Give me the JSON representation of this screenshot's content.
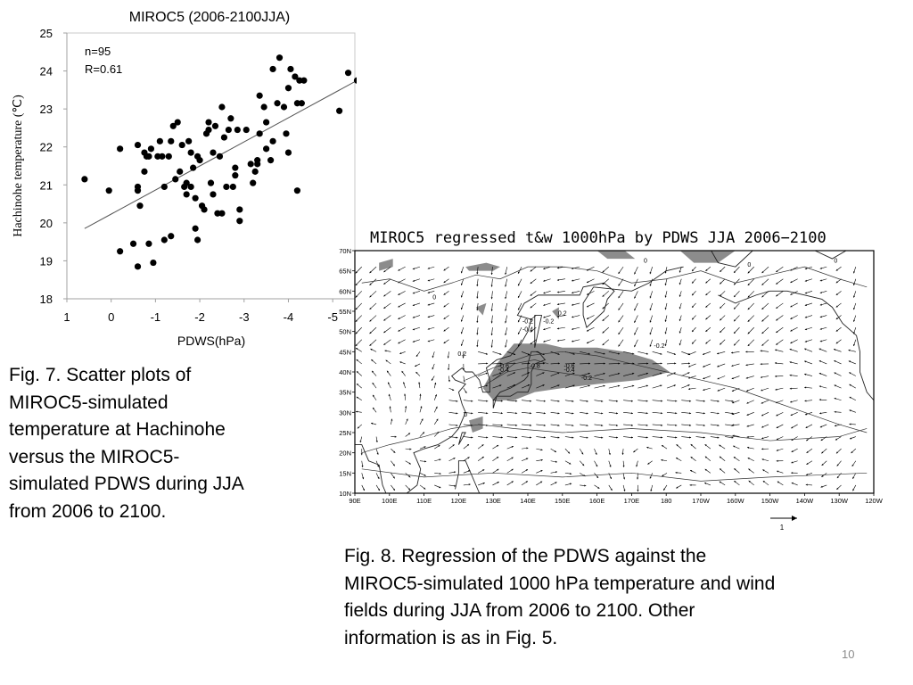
{
  "slide": {
    "page_number": "10",
    "fig7_caption": "Fig. 7. Scatter plots of\nMIROC5-simulated\ntemperature at Hachinohe\nversus the MIROC5-\nsimulated PDWS during JJA\nfrom 2006 to 2100.",
    "fig8_caption": "Fig. 8. Regression of the PDWS against the\nMIROC5-simulated 1000 hPa temperature and wind\nfields during JJA from 2006 to 2100. Other\ninformation is as in Fig. 5."
  },
  "chart_data": [
    {
      "type": "scatter",
      "title": "MIROC5 (2006-2100JJA)",
      "xlabel": "PDWS(hPa)",
      "ylabel": "Hachinohe temperature (℃)",
      "annotations": [
        "n=95",
        "R=0.61"
      ],
      "xlim": [
        1,
        -5.5
      ],
      "ylim": [
        18,
        25
      ],
      "x_ticks": [
        "1",
        "0",
        "-1",
        "-2",
        "-3",
        "-4",
        "-5"
      ],
      "y_ticks": [
        "18",
        "19",
        "20",
        "21",
        "22",
        "23",
        "24",
        "25"
      ],
      "marker_color": "#000000",
      "grid": false,
      "points": [
        [
          0.6,
          21.15
        ],
        [
          0.05,
          20.85
        ],
        [
          -0.2,
          21.95
        ],
        [
          -0.2,
          19.25
        ],
        [
          -0.5,
          19.45
        ],
        [
          -0.6,
          22.05
        ],
        [
          -0.6,
          20.95
        ],
        [
          -0.6,
          20.85
        ],
        [
          -0.6,
          18.85
        ],
        [
          -0.65,
          20.45
        ],
        [
          -0.75,
          21.85
        ],
        [
          -0.75,
          21.35
        ],
        [
          -0.8,
          21.75
        ],
        [
          -0.85,
          21.75
        ],
        [
          -0.85,
          19.45
        ],
        [
          -0.9,
          21.95
        ],
        [
          -0.95,
          18.95
        ],
        [
          -1.05,
          21.75
        ],
        [
          -1.15,
          21.75
        ],
        [
          -1.1,
          22.15
        ],
        [
          -1.2,
          19.55
        ],
        [
          -1.2,
          20.95
        ],
        [
          -1.3,
          21.75
        ],
        [
          -1.35,
          22.15
        ],
        [
          -1.35,
          19.65
        ],
        [
          -1.4,
          22.55
        ],
        [
          -1.45,
          21.15
        ],
        [
          -1.5,
          22.65
        ],
        [
          -1.55,
          21.35
        ],
        [
          -1.6,
          22.05
        ],
        [
          -1.65,
          20.95
        ],
        [
          -1.7,
          21.05
        ],
        [
          -1.7,
          20.75
        ],
        [
          -1.75,
          22.15
        ],
        [
          -1.8,
          21.85
        ],
        [
          -1.8,
          20.95
        ],
        [
          -1.85,
          21.45
        ],
        [
          -1.9,
          20.65
        ],
        [
          -1.9,
          19.85
        ],
        [
          -1.95,
          21.75
        ],
        [
          -1.95,
          19.55
        ],
        [
          -2.0,
          21.65
        ],
        [
          -2.05,
          20.45
        ],
        [
          -2.1,
          20.35
        ],
        [
          -2.15,
          22.35
        ],
        [
          -2.2,
          22.65
        ],
        [
          -2.2,
          22.45
        ],
        [
          -2.25,
          21.05
        ],
        [
          -2.3,
          21.85
        ],
        [
          -2.3,
          20.75
        ],
        [
          -2.35,
          22.55
        ],
        [
          -2.4,
          20.25
        ],
        [
          -2.45,
          21.75
        ],
        [
          -2.5,
          20.25
        ],
        [
          -2.5,
          23.05
        ],
        [
          -2.55,
          22.25
        ],
        [
          -2.6,
          20.95
        ],
        [
          -2.65,
          22.45
        ],
        [
          -2.7,
          22.75
        ],
        [
          -2.75,
          20.95
        ],
        [
          -2.8,
          21.45
        ],
        [
          -2.8,
          21.25
        ],
        [
          -2.85,
          22.45
        ],
        [
          -2.9,
          20.35
        ],
        [
          -2.9,
          20.05
        ],
        [
          -3.05,
          22.45
        ],
        [
          -3.15,
          21.55
        ],
        [
          -3.2,
          21.05
        ],
        [
          -3.25,
          21.35
        ],
        [
          -3.3,
          21.65
        ],
        [
          -3.3,
          21.55
        ],
        [
          -3.35,
          23.35
        ],
        [
          -3.35,
          22.35
        ],
        [
          -3.45,
          23.05
        ],
        [
          -3.5,
          22.65
        ],
        [
          -3.5,
          21.95
        ],
        [
          -3.6,
          21.65
        ],
        [
          -3.65,
          22.15
        ],
        [
          -3.65,
          24.05
        ],
        [
          -3.75,
          23.15
        ],
        [
          -3.8,
          24.35
        ],
        [
          -3.9,
          23.05
        ],
        [
          -3.95,
          22.35
        ],
        [
          -4.0,
          23.55
        ],
        [
          -4.05,
          24.05
        ],
        [
          -4.15,
          23.85
        ],
        [
          -4.2,
          20.85
        ],
        [
          -4.2,
          23.15
        ],
        [
          -4.25,
          23.75
        ],
        [
          -4.3,
          23.15
        ],
        [
          -4.35,
          23.75
        ],
        [
          -5.15,
          22.95
        ],
        [
          -5.35,
          23.95
        ],
        [
          -5.55,
          23.75
        ],
        [
          -4.0,
          21.85
        ]
      ],
      "regression_line": {
        "from": [
          0.6,
          19.85
        ],
        "to": [
          -5.55,
          23.75
        ]
      }
    },
    {
      "type": "map",
      "title": "MIROC5 regressed t&w 1000hPa by PDWS JJA 2006−2100",
      "lat_labels": [
        "70N",
        "65N",
        "60N",
        "55N",
        "50N",
        "45N",
        "40N",
        "35N",
        "30N",
        "25N",
        "20N",
        "15N",
        "10N"
      ],
      "lon_labels": [
        "90E",
        "100E",
        "110E",
        "120E",
        "130E",
        "140E",
        "150E",
        "160E",
        "170E",
        "180",
        "170W",
        "160W",
        "150W",
        "140W",
        "130W",
        "120W"
      ],
      "lat_range": [
        10,
        70
      ],
      "lon_range": [
        90,
        240
      ],
      "shading_color": "#8c8c8c",
      "contour_labels": [
        "0",
        "0",
        "0",
        "0",
        "-0.2",
        "-0.2",
        "-0.4",
        "0.2",
        "-0.6",
        "-0.4",
        "-0.8",
        "-0.6",
        "-0.4",
        "-0.2",
        "-0.2",
        "0.2",
        "0"
      ],
      "reference_vector": {
        "label": "1"
      }
    }
  ]
}
